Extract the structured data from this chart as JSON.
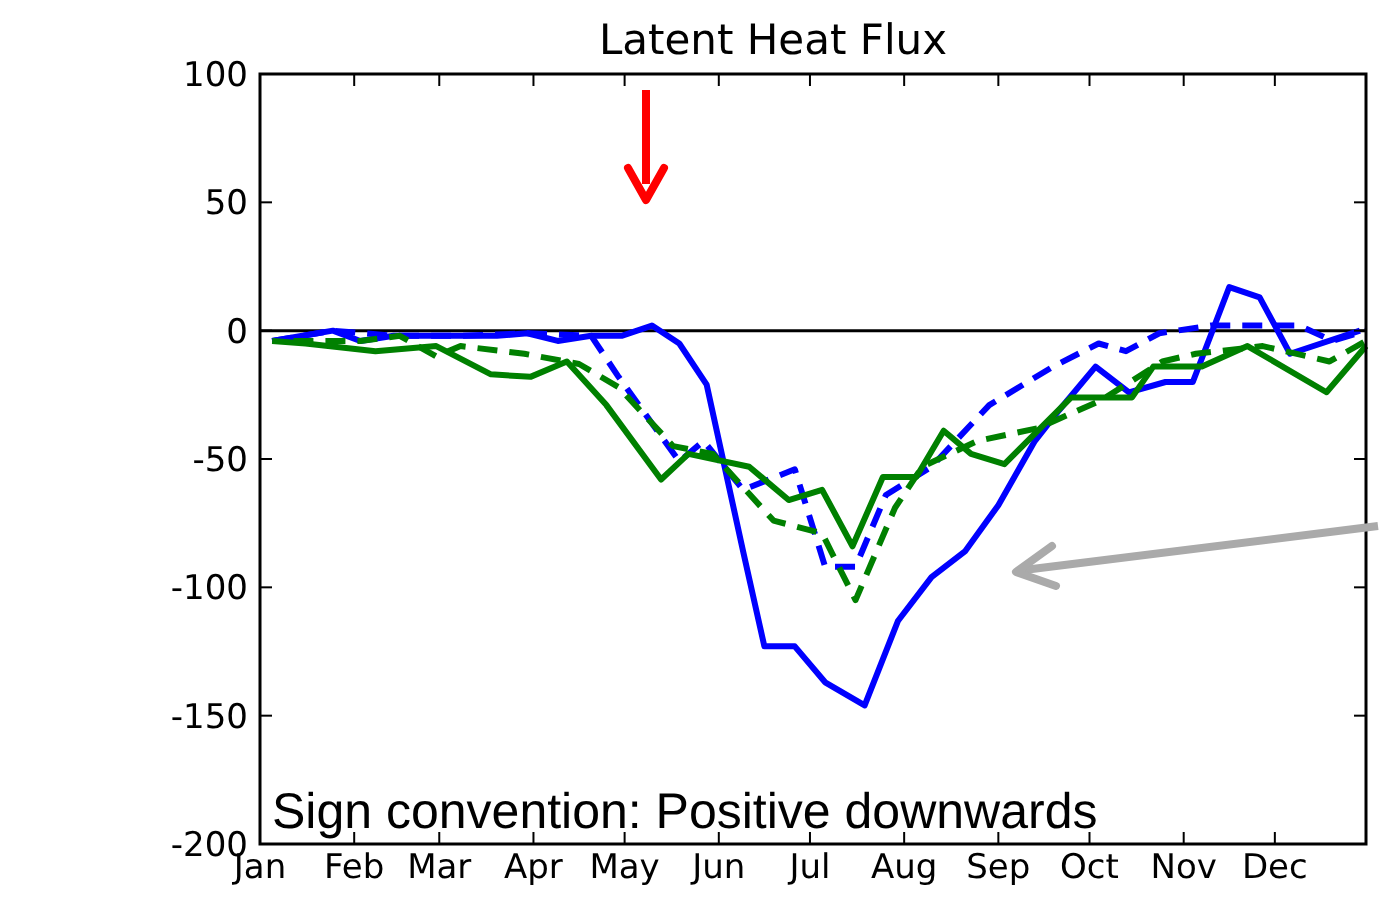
{
  "chart_data": {
    "type": "line",
    "title": "Latent Heat Flux",
    "xlim": [
      "--01-01",
      "--12-31"
    ],
    "xticks": [
      {
        "value": "--01-01",
        "label": "Jan"
      },
      {
        "value": "--02-01",
        "label": "Feb"
      },
      {
        "value": "--03-01",
        "label": "Mar"
      },
      {
        "value": "--04-01",
        "label": "Apr"
      },
      {
        "value": "--05-01",
        "label": "May"
      },
      {
        "value": "--06-01",
        "label": "Jun"
      },
      {
        "value": "--07-01",
        "label": "Jul"
      },
      {
        "value": "--08-01",
        "label": "Aug"
      },
      {
        "value": "--09-01",
        "label": "Sep"
      },
      {
        "value": "--10-01",
        "label": "Oct"
      },
      {
        "value": "--11-01",
        "label": "Nov"
      },
      {
        "value": "--12-01",
        "label": "Dec"
      }
    ],
    "ylim": [
      -200,
      100
    ],
    "yticks": [
      -200,
      -150,
      -100,
      -50,
      0,
      50,
      100
    ],
    "grid": false,
    "marker": "none",
    "ref_lines": [
      {
        "axis": "y",
        "value": 0,
        "color": "#000000",
        "line_style": "solid"
      }
    ],
    "annotations": [
      "Sign convention: Positive downwards"
    ],
    "series": [
      {
        "color": "#0000ff",
        "line_style": "solid",
        "x": [
          "--01-05",
          "--01-15",
          "--01-25",
          "--02-03",
          "--02-14",
          "--02-26",
          "--03-09",
          "--03-20",
          "--03-30",
          "--04-09",
          "--04-20",
          "--04-30",
          "--05-10",
          "--05-19",
          "--05-28",
          "--06-09",
          "--06-16",
          "--06-26",
          "--07-06",
          "--07-19",
          "--07-30",
          "--08-10",
          "--08-21",
          "--09-01",
          "--09-13",
          "--09-21",
          "--10-03",
          "--10-14",
          "--10-26",
          "--11-04",
          "--11-16",
          "--11-26",
          "--12-06",
          "--12-29"
        ],
        "values": [
          -4,
          -2,
          0,
          -4,
          -2,
          -2,
          -2,
          -2,
          -1,
          -4,
          -2,
          -2,
          2,
          -5,
          -21,
          -86,
          -123,
          -123,
          -137,
          -146,
          -113,
          -96,
          -86,
          -68,
          -43,
          -31,
          -14,
          -24,
          -20,
          -20,
          17,
          13,
          -9,
          0
        ]
      },
      {
        "color": "#0000ff",
        "line_style": "dashed",
        "x": [
          "--01-05",
          "--01-25",
          "--02-14",
          "--03-09",
          "--03-30",
          "--04-20",
          "--04-29",
          "--05-19",
          "--05-27",
          "--06-09",
          "--06-26",
          "--07-06",
          "--07-16",
          "--07-26",
          "--08-10",
          "--08-29",
          "--09-19",
          "--10-04",
          "--10-13",
          "--10-24",
          "--11-10",
          "--11-23",
          "--12-09",
          "--12-20",
          "--12-31"
        ],
        "values": [
          -4,
          0,
          -2,
          -2,
          -1,
          -2,
          -18,
          -51,
          -43,
          -62,
          -54,
          -92,
          -92,
          -64,
          -53,
          -29,
          -14,
          -5,
          -8,
          -1,
          2,
          2,
          2,
          -4,
          0
        ]
      },
      {
        "color": "#008000",
        "line_style": "solid",
        "x": [
          "--01-05",
          "--01-16",
          "--02-08",
          "--02-28",
          "--03-18",
          "--03-31",
          "--04-12",
          "--04-25",
          "--05-13",
          "--05-22",
          "--06-11",
          "--06-24",
          "--07-05",
          "--07-15",
          "--07-25",
          "--08-05",
          "--08-14",
          "--08-23",
          "--09-03",
          "--09-25",
          "--10-15",
          "--10-22",
          "--11-07",
          "--11-22",
          "--12-18",
          "--12-31"
        ],
        "values": [
          -4,
          -5,
          -8,
          -6,
          -17,
          -18,
          -12,
          -29,
          -58,
          -48,
          -53,
          -66,
          -62,
          -84,
          -57,
          -57,
          -39,
          -48,
          -52,
          -26,
          -26,
          -14,
          -14,
          -6,
          -24,
          -6
        ]
      },
      {
        "color": "#008000",
        "line_style": "dashed",
        "x": [
          "--01-12",
          "--02-03",
          "--02-16",
          "--02-28",
          "--03-08",
          "--03-29",
          "--04-16",
          "--04-29",
          "--05-17",
          "--05-30",
          "--06-19",
          "--07-05",
          "--07-16",
          "--07-29",
          "--08-07",
          "--08-25",
          "--09-14",
          "--10-05",
          "--10-25",
          "--11-05",
          "--11-27",
          "--12-19",
          "--12-31"
        ],
        "values": [
          -4,
          -4,
          -2,
          -10,
          -6,
          -9,
          -13,
          -22,
          -45,
          -48,
          -74,
          -79,
          -105,
          -69,
          -53,
          -43,
          -38,
          -27,
          -12,
          -9,
          -6,
          -12,
          -4
        ]
      }
    ]
  }
}
